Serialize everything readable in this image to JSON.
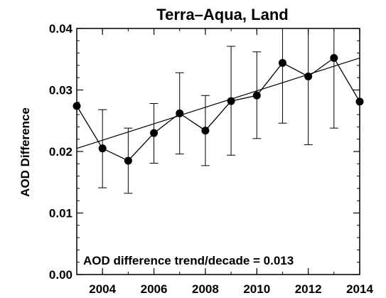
{
  "chart_data": {
    "type": "line",
    "title": "Terra–Aqua, Land",
    "xlabel": "",
    "ylabel": "AOD Difference",
    "xlim": [
      2003,
      2014
    ],
    "ylim": [
      0.0,
      0.04
    ],
    "xticks": [
      2004,
      2006,
      2008,
      2010,
      2012,
      2014
    ],
    "xtick_labels": [
      "2004",
      "2006",
      "2008",
      "2010",
      "2012",
      "2014"
    ],
    "yticks": [
      0.0,
      0.01,
      0.02,
      0.03,
      0.04
    ],
    "ytick_labels": [
      "0.00",
      "0.01",
      "0.02",
      "0.03",
      "0.04"
    ],
    "grid": false,
    "legend": "none",
    "series": [
      {
        "x": [
          2003,
          2004,
          2005,
          2006,
          2007,
          2008,
          2009,
          2010,
          2011,
          2012,
          2013,
          2014
        ],
        "values": [
          0.0274,
          0.0205,
          0.0185,
          0.023,
          0.0262,
          0.0234,
          0.0282,
          0.0291,
          0.0344,
          0.0322,
          0.0352,
          0.0281
        ],
        "error_low": [
          null,
          0.0141,
          0.0132,
          0.0181,
          0.0196,
          0.0177,
          0.0194,
          0.0221,
          0.0246,
          0.0211,
          0.0238,
          null
        ],
        "error_high": [
          null,
          0.0268,
          0.0238,
          0.0278,
          0.0328,
          0.0291,
          0.0371,
          0.0362,
          0.042,
          0.042,
          0.042,
          null
        ],
        "color": "#000000"
      }
    ],
    "trend_line": {
      "x": [
        2003,
        2014
      ],
      "y": [
        0.0205,
        0.0352
      ]
    },
    "annotations": [
      "AOD difference trend/decade = 0.013"
    ]
  }
}
